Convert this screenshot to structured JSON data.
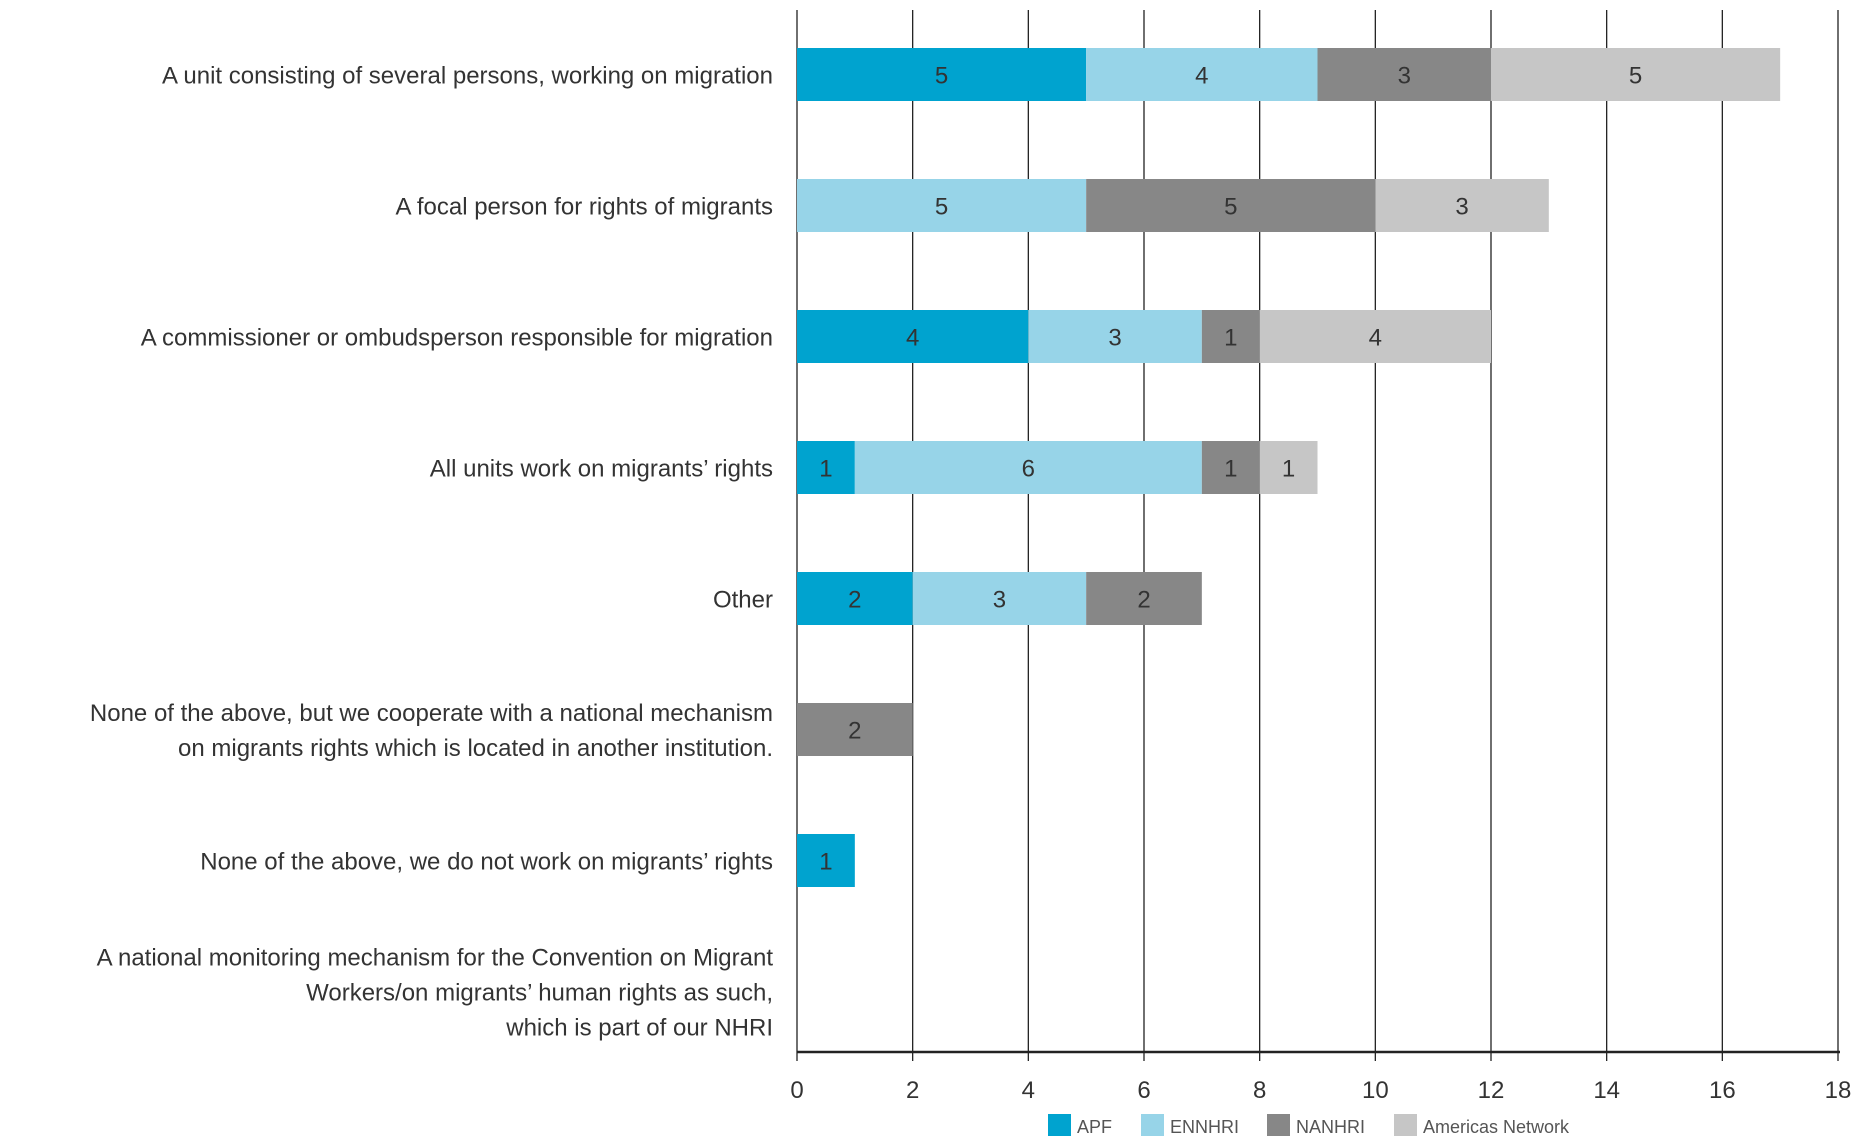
{
  "chart_data": {
    "type": "bar",
    "orientation": "horizontal",
    "stacked": true,
    "categories": [
      [
        "A unit consisting of several persons, working on migration"
      ],
      [
        "A focal person for rights of migrants"
      ],
      [
        "A commissioner or ombudsperson responsible for migration"
      ],
      [
        "All units work on migrants’ rights"
      ],
      [
        "Other"
      ],
      [
        "None of the above, but we cooperate with a national mechanism",
        "on migrants rights which is located in another institution."
      ],
      [
        "None of the above, we do not work on migrants’ rights"
      ],
      [
        "A national monitoring mechanism for the Convention on Migrant",
        "Workers/on migrants’ human rights as such,",
        "which is part of our NHRI"
      ]
    ],
    "series": [
      {
        "name": "APF",
        "color": "#00a3cf",
        "values": [
          5,
          0,
          4,
          1,
          2,
          0,
          1,
          0
        ]
      },
      {
        "name": "ENNHRI",
        "color": "#97d4e8",
        "values": [
          4,
          5,
          3,
          6,
          3,
          0,
          0,
          0
        ]
      },
      {
        "name": "NANHRI",
        "color": "#878787",
        "values": [
          3,
          5,
          1,
          1,
          2,
          2,
          0,
          0
        ]
      },
      {
        "name": "Americas Network",
        "color": "#c6c6c6",
        "values": [
          5,
          3,
          4,
          1,
          0,
          0,
          0,
          0
        ]
      }
    ],
    "xlim": [
      0,
      18
    ],
    "xticks": [
      "0",
      "2",
      "4",
      "6",
      "8",
      "10",
      "12",
      "14",
      "16",
      "18"
    ],
    "grid": "vertical",
    "legend": "bottom"
  }
}
